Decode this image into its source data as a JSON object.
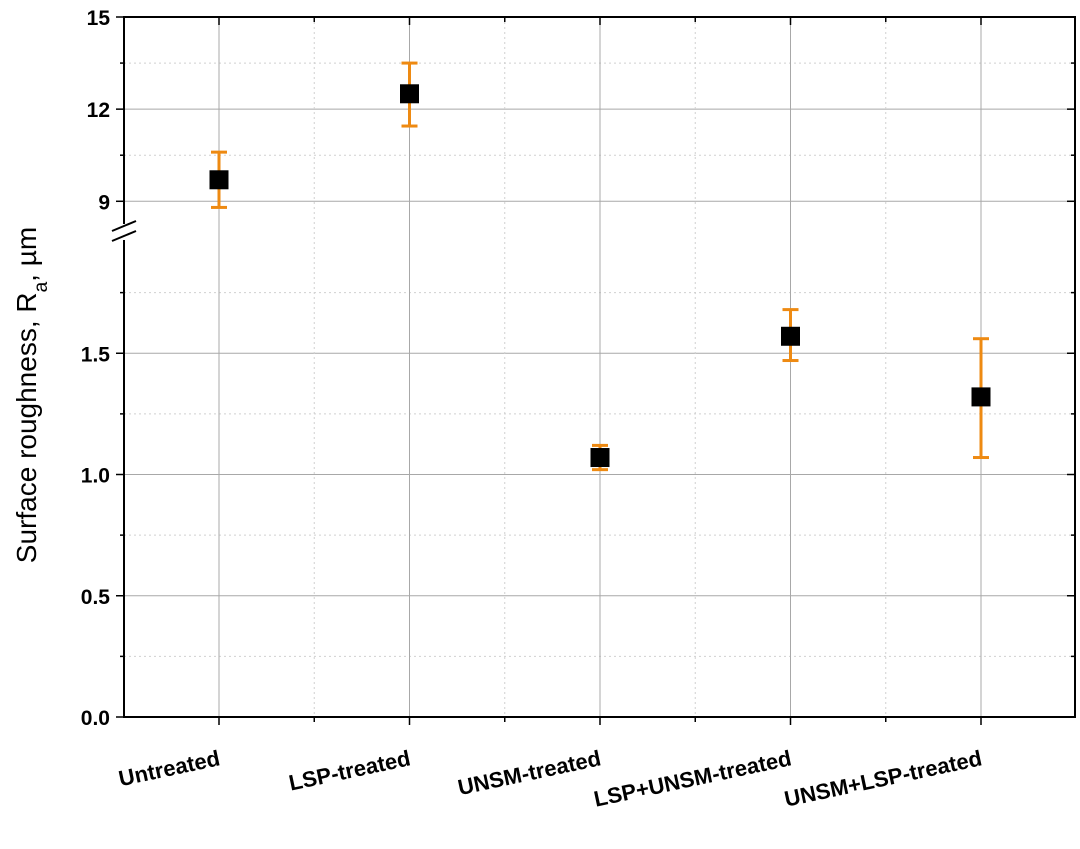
{
  "chart_data": {
    "type": "scatter",
    "title": "",
    "xlabel": "",
    "ylabel": {
      "main": "Surface roughness, R",
      "subscript": "a",
      "unit": ", µm"
    },
    "categories": [
      "Untreated",
      "LSP-treated",
      "UNSM-treated",
      "LSP+UNSM-treated",
      "UNSM+LSP-treated"
    ],
    "series": [
      {
        "values": [
          9.7,
          12.5,
          1.07,
          1.57,
          1.32
        ],
        "error_low": [
          8.8,
          11.45,
          1.02,
          1.47,
          1.07
        ],
        "error_high": [
          10.6,
          13.5,
          1.12,
          1.68,
          1.56
        ]
      }
    ],
    "y_axis": {
      "broken": true,
      "lower_segment": {
        "range": [
          0,
          2.0
        ],
        "ticks": [
          "0.0",
          "0.5",
          "1.0",
          "1.5"
        ]
      },
      "upper_segment": {
        "range": [
          8,
          15
        ],
        "ticks": [
          "9",
          "12",
          "15"
        ]
      }
    },
    "grid": true,
    "legend": "none",
    "colors": {
      "marker": "#000000",
      "error_bar": "#ee8a12"
    }
  }
}
